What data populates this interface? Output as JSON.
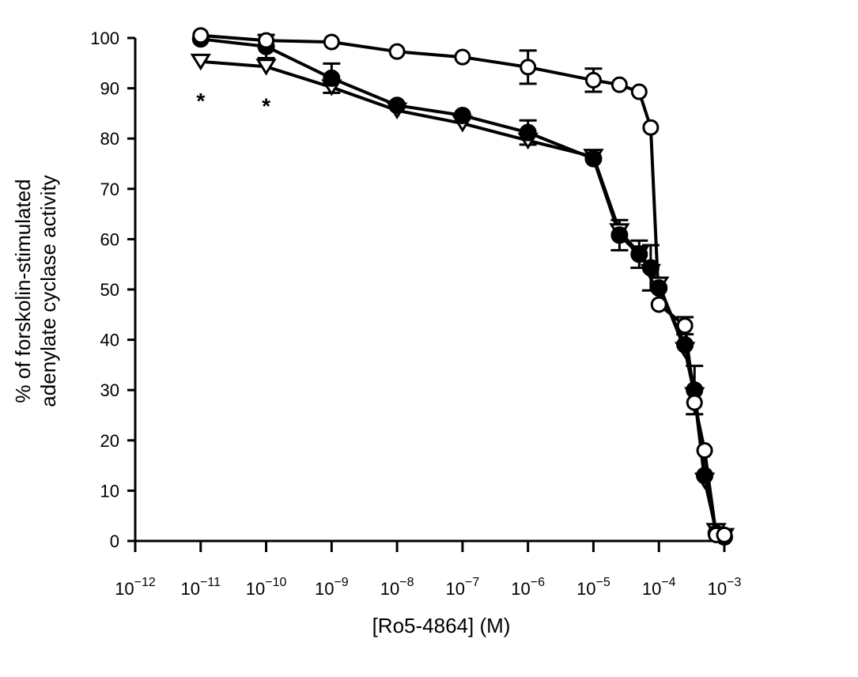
{
  "chart_data": {
    "type": "line",
    "title": "",
    "xlabel": "[Ro5-4864] (M)",
    "ylabel_lines": [
      "% of forskolin-stimulated",
      "adenylate cyclase activity"
    ],
    "x_scale": "log",
    "xlim_exponents": [
      -12,
      -3
    ],
    "ylim": [
      0,
      100
    ],
    "y_ticks": [
      "0",
      "10",
      "20",
      "30",
      "40",
      "50",
      "60",
      "70",
      "80",
      "90",
      "100"
    ],
    "x_ticks": [
      {
        "exp": -12,
        "base": "10",
        "sup": "−12"
      },
      {
        "exp": -11,
        "base": "10",
        "sup": "−11"
      },
      {
        "exp": -10,
        "base": "10",
        "sup": "−10"
      },
      {
        "exp": -9,
        "base": "10",
        "sup": "−9"
      },
      {
        "exp": -8,
        "base": "10",
        "sup": "−8"
      },
      {
        "exp": -7,
        "base": "10",
        "sup": "−7"
      },
      {
        "exp": -6,
        "base": "10",
        "sup": "−6"
      },
      {
        "exp": -5,
        "base": "10",
        "sup": "−5"
      },
      {
        "exp": -4,
        "base": "10",
        "sup": "−4"
      },
      {
        "exp": -3,
        "base": "10",
        "sup": "−3"
      }
    ],
    "grid": false,
    "legend": "none",
    "series": [
      {
        "marker": "open-circle",
        "points": [
          {
            "x": 1e-11,
            "y": 100.5
          },
          {
            "x": 1e-10,
            "y": 99.5
          },
          {
            "x": 1e-09,
            "y": 99.2
          },
          {
            "x": 1e-08,
            "y": 97.3
          },
          {
            "x": 1e-07,
            "y": 96.2
          },
          {
            "x": 1e-06,
            "y": 94.2,
            "err": 3.3
          },
          {
            "x": 1e-05,
            "y": 91.6,
            "err": 2.3
          },
          {
            "x": 2.5e-05,
            "y": 90.7
          },
          {
            "x": 5e-05,
            "y": 89.3
          },
          {
            "x": 7.5e-05,
            "y": 82.2
          },
          {
            "x": 0.0001,
            "y": 47.0
          },
          {
            "x": 0.00025,
            "y": 42.8,
            "err": 1.7
          },
          {
            "x": 0.00035,
            "y": 27.5
          },
          {
            "x": 0.0005,
            "y": 18.0
          },
          {
            "x": 0.00075,
            "y": 1.2
          },
          {
            "x": 0.001,
            "y": 1.2
          }
        ]
      },
      {
        "marker": "filled-circle",
        "points": [
          {
            "x": 1e-11,
            "y": 99.8
          },
          {
            "x": 1e-10,
            "y": 98.3,
            "err": 2.3
          },
          {
            "x": 1e-09,
            "y": 92.0,
            "err": 2.9
          },
          {
            "x": 1e-08,
            "y": 86.6
          },
          {
            "x": 1e-07,
            "y": 84.6
          },
          {
            "x": 1e-06,
            "y": 81.2,
            "err": 2.4
          },
          {
            "x": 1e-05,
            "y": 76.0
          },
          {
            "x": 2.5e-05,
            "y": 60.8,
            "err": 3.0
          },
          {
            "x": 5e-05,
            "y": 57.0,
            "err": 2.7
          },
          {
            "x": 7.5e-05,
            "y": 54.3,
            "err": 4.5
          },
          {
            "x": 0.0001,
            "y": 50.3
          },
          {
            "x": 0.00025,
            "y": 39.0
          },
          {
            "x": 0.00035,
            "y": 30.0,
            "err": 4.8
          },
          {
            "x": 0.0005,
            "y": 13.0
          },
          {
            "x": 0.00075,
            "y": 1.5
          },
          {
            "x": 0.001,
            "y": 0.8
          }
        ]
      },
      {
        "marker": "triangle",
        "points": [
          {
            "x": 1e-11,
            "y": 95.3
          },
          {
            "x": 1e-10,
            "y": 94.3
          },
          {
            "x": 1e-09,
            "y": 90.2
          },
          {
            "x": 1e-08,
            "y": 85.6
          },
          {
            "x": 1e-07,
            "y": 83.0
          },
          {
            "x": 1e-06,
            "y": 79.6
          },
          {
            "x": 1e-05,
            "y": 76.4
          },
          {
            "x": 2.5e-05,
            "y": 61.6
          },
          {
            "x": 5e-05,
            "y": 57.2
          },
          {
            "x": 7.5e-05,
            "y": 53.5
          },
          {
            "x": 0.0001,
            "y": 51.0
          },
          {
            "x": 0.00025,
            "y": 38.0
          },
          {
            "x": 0.00035,
            "y": 29.0
          },
          {
            "x": 0.0005,
            "y": 12.0
          },
          {
            "x": 0.00075,
            "y": 2.0
          },
          {
            "x": 0.001,
            "y": 1.0
          }
        ]
      }
    ],
    "annotations": [
      {
        "text": "*",
        "x": 1e-11,
        "y": 88.5
      },
      {
        "text": "*",
        "x": 1e-10,
        "y": 87.5
      }
    ]
  }
}
